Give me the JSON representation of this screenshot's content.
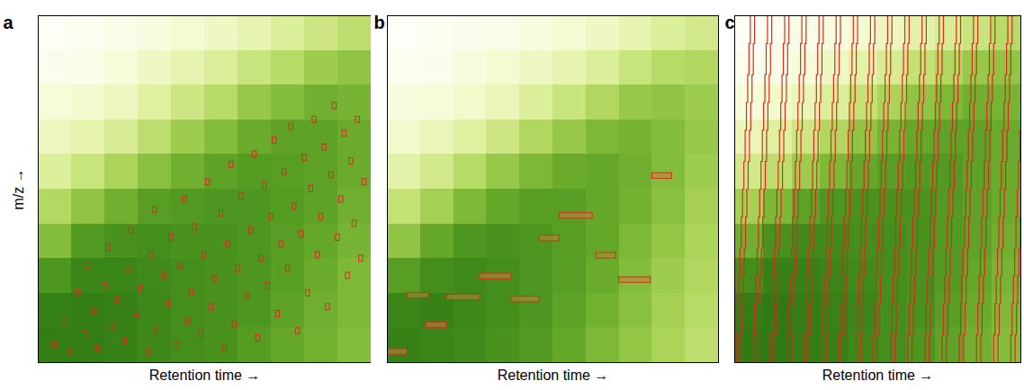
{
  "chart_data": [
    {
      "panel": "a",
      "type": "heatmap",
      "xlabel": "Retention time →",
      "ylabel": "m/z →",
      "xlim": [
        0,
        100
      ],
      "ylim": [
        0,
        100
      ],
      "xticks": [],
      "yticks": [],
      "tick_labels": false,
      "cells": {
        "x_edges": [
          0,
          10,
          20,
          30,
          40,
          50,
          60,
          70,
          80,
          90,
          100
        ],
        "y_edges": [
          0,
          10,
          20,
          30,
          40,
          50,
          60,
          70,
          80,
          90,
          100
        ],
        "intensity_range": [
          0,
          1
        ],
        "intensity": [
          [
            0.9,
            0.9,
            0.88,
            0.85,
            0.82,
            0.8,
            0.75,
            0.7,
            0.65,
            0.6
          ],
          [
            0.88,
            0.9,
            0.88,
            0.85,
            0.82,
            0.8,
            0.78,
            0.72,
            0.66,
            0.62
          ],
          [
            0.78,
            0.86,
            0.86,
            0.84,
            0.82,
            0.8,
            0.78,
            0.74,
            0.68,
            0.62
          ],
          [
            0.6,
            0.76,
            0.8,
            0.82,
            0.8,
            0.8,
            0.78,
            0.74,
            0.7,
            0.64
          ],
          [
            0.45,
            0.56,
            0.66,
            0.74,
            0.76,
            0.78,
            0.78,
            0.75,
            0.72,
            0.66
          ],
          [
            0.3,
            0.38,
            0.48,
            0.58,
            0.66,
            0.72,
            0.75,
            0.74,
            0.72,
            0.68
          ],
          [
            0.2,
            0.25,
            0.32,
            0.42,
            0.52,
            0.6,
            0.68,
            0.72,
            0.72,
            0.68
          ],
          [
            0.12,
            0.15,
            0.2,
            0.28,
            0.36,
            0.44,
            0.54,
            0.6,
            0.66,
            0.64
          ],
          [
            0.06,
            0.08,
            0.12,
            0.18,
            0.24,
            0.3,
            0.38,
            0.44,
            0.52,
            0.56
          ],
          [
            0.03,
            0.05,
            0.08,
            0.1,
            0.14,
            0.18,
            0.24,
            0.3,
            0.36,
            0.42
          ]
        ]
      },
      "features": {
        "type": "box",
        "color": "#d62d20",
        "rt_width": 1.2,
        "mz_height": 1.8,
        "centers": [
          [
            5,
            5
          ],
          [
            8,
            12
          ],
          [
            10,
            3
          ],
          [
            12,
            20
          ],
          [
            14,
            8
          ],
          [
            15,
            28
          ],
          [
            17,
            15
          ],
          [
            18,
            4
          ],
          [
            20,
            22
          ],
          [
            21,
            33
          ],
          [
            23,
            10
          ],
          [
            24,
            18
          ],
          [
            26,
            6
          ],
          [
            27,
            27
          ],
          [
            28,
            38
          ],
          [
            30,
            14
          ],
          [
            31,
            21
          ],
          [
            33,
            3
          ],
          [
            34,
            31
          ],
          [
            35,
            44
          ],
          [
            36,
            9
          ],
          [
            38,
            25
          ],
          [
            39,
            17
          ],
          [
            40,
            36
          ],
          [
            42,
            5
          ],
          [
            43,
            28
          ],
          [
            44,
            47
          ],
          [
            45,
            12
          ],
          [
            46,
            20
          ],
          [
            47,
            39
          ],
          [
            49,
            8
          ],
          [
            50,
            31
          ],
          [
            51,
            52
          ],
          [
            52,
            16
          ],
          [
            53,
            24
          ],
          [
            55,
            43
          ],
          [
            56,
            4
          ],
          [
            57,
            34
          ],
          [
            58,
            57
          ],
          [
            59,
            11
          ],
          [
            60,
            27
          ],
          [
            61,
            48
          ],
          [
            63,
            19
          ],
          [
            64,
            38
          ],
          [
            65,
            60
          ],
          [
            66,
            7
          ],
          [
            67,
            30
          ],
          [
            68,
            51
          ],
          [
            69,
            22
          ],
          [
            70,
            42
          ],
          [
            71,
            64
          ],
          [
            72,
            14
          ],
          [
            73,
            34
          ],
          [
            74,
            55
          ],
          [
            75,
            27
          ],
          [
            76,
            68
          ],
          [
            77,
            45
          ],
          [
            78,
            9
          ],
          [
            79,
            37
          ],
          [
            80,
            59
          ],
          [
            81,
            20
          ],
          [
            82,
            50
          ],
          [
            83,
            70
          ],
          [
            84,
            31
          ],
          [
            85,
            42
          ],
          [
            86,
            62
          ],
          [
            87,
            16
          ],
          [
            88,
            54
          ],
          [
            89,
            74
          ],
          [
            90,
            36
          ],
          [
            91,
            47
          ],
          [
            92,
            66
          ],
          [
            93,
            25
          ],
          [
            94,
            58
          ],
          [
            95,
            40
          ],
          [
            96,
            70
          ],
          [
            97,
            30
          ],
          [
            98,
            52
          ]
        ]
      }
    },
    {
      "panel": "b",
      "type": "heatmap",
      "xlabel": "Retention time →",
      "xlim": [
        0,
        100
      ],
      "ylim": [
        0,
        100
      ],
      "xticks": [],
      "yticks": [],
      "tick_labels": false,
      "cells": {
        "x_edges": [
          0,
          10,
          20,
          30,
          40,
          50,
          60,
          70,
          80,
          90,
          100
        ],
        "y_edges": [
          0,
          10,
          20,
          30,
          40,
          50,
          60,
          70,
          80,
          90,
          100
        ],
        "intensity_range": [
          0,
          1
        ],
        "intensity": [
          [
            0.88,
            0.86,
            0.84,
            0.8,
            0.76,
            0.7,
            0.62,
            0.55,
            0.48,
            0.42
          ],
          [
            0.86,
            0.88,
            0.85,
            0.82,
            0.78,
            0.72,
            0.65,
            0.58,
            0.5,
            0.44
          ],
          [
            0.74,
            0.82,
            0.84,
            0.82,
            0.78,
            0.74,
            0.68,
            0.6,
            0.52,
            0.46
          ],
          [
            0.56,
            0.7,
            0.78,
            0.8,
            0.78,
            0.74,
            0.7,
            0.62,
            0.55,
            0.48
          ],
          [
            0.4,
            0.5,
            0.62,
            0.7,
            0.74,
            0.74,
            0.7,
            0.65,
            0.58,
            0.5
          ],
          [
            0.26,
            0.34,
            0.44,
            0.54,
            0.62,
            0.68,
            0.7,
            0.66,
            0.6,
            0.52
          ],
          [
            0.16,
            0.22,
            0.28,
            0.36,
            0.46,
            0.54,
            0.62,
            0.64,
            0.6,
            0.54
          ],
          [
            0.1,
            0.12,
            0.16,
            0.22,
            0.3,
            0.38,
            0.46,
            0.54,
            0.56,
            0.52
          ],
          [
            0.05,
            0.06,
            0.1,
            0.14,
            0.18,
            0.24,
            0.3,
            0.38,
            0.44,
            0.46
          ],
          [
            0.02,
            0.04,
            0.06,
            0.08,
            0.1,
            0.14,
            0.18,
            0.24,
            0.3,
            0.34
          ]
        ]
      },
      "features": {
        "type": "bar",
        "color": "#d62d20",
        "boxes": [
          [
            0,
            6,
            2.3,
            3.9
          ],
          [
            6,
            12.5,
            18.5,
            20.1
          ],
          [
            11.7,
            18,
            10,
            11.6
          ],
          [
            18,
            28,
            18,
            19.6
          ],
          [
            28,
            37.5,
            24,
            25.6
          ],
          [
            37.5,
            46,
            17.4,
            19
          ],
          [
            46,
            52,
            35,
            36.6
          ],
          [
            52,
            62,
            41.5,
            43.1
          ],
          [
            63,
            69,
            30,
            31.6
          ],
          [
            70,
            79.6,
            23,
            24.6
          ],
          [
            80,
            86,
            53,
            54.6
          ]
        ]
      }
    },
    {
      "panel": "c",
      "type": "heatmap",
      "xlabel": "Retention time →",
      "xlim": [
        0,
        100
      ],
      "ylim": [
        0,
        100
      ],
      "xticks": [],
      "yticks": [],
      "tick_labels": false,
      "cells": {
        "x_edges": [
          0,
          10,
          20,
          30,
          40,
          50,
          60,
          70,
          80,
          90,
          100
        ],
        "y_edges": [
          0,
          10,
          20,
          30,
          40,
          50,
          60,
          70,
          80,
          90,
          100
        ],
        "intensity_range": [
          0,
          1
        ],
        "intensity": [
          [
            0.92,
            0.92,
            0.9,
            0.88,
            0.85,
            0.82,
            0.78,
            0.72,
            0.66,
            0.6
          ],
          [
            0.9,
            0.92,
            0.9,
            0.88,
            0.86,
            0.82,
            0.8,
            0.74,
            0.68,
            0.62
          ],
          [
            0.82,
            0.88,
            0.88,
            0.86,
            0.84,
            0.82,
            0.8,
            0.76,
            0.7,
            0.64
          ],
          [
            0.66,
            0.8,
            0.84,
            0.84,
            0.82,
            0.82,
            0.8,
            0.76,
            0.72,
            0.66
          ],
          [
            0.5,
            0.62,
            0.72,
            0.78,
            0.8,
            0.8,
            0.8,
            0.76,
            0.72,
            0.68
          ],
          [
            0.34,
            0.42,
            0.52,
            0.62,
            0.7,
            0.74,
            0.76,
            0.76,
            0.72,
            0.68
          ],
          [
            0.22,
            0.28,
            0.36,
            0.46,
            0.56,
            0.64,
            0.7,
            0.72,
            0.72,
            0.68
          ],
          [
            0.12,
            0.16,
            0.22,
            0.3,
            0.4,
            0.48,
            0.56,
            0.62,
            0.66,
            0.64
          ],
          [
            0.06,
            0.08,
            0.12,
            0.18,
            0.26,
            0.32,
            0.4,
            0.46,
            0.54,
            0.56
          ],
          [
            0.03,
            0.05,
            0.08,
            0.1,
            0.14,
            0.2,
            0.26,
            0.32,
            0.38,
            0.44
          ]
        ]
      },
      "windows": {
        "type": "line",
        "color": "#d62d20",
        "rt_width": 1.5,
        "mz_edges": [
          0,
          8,
          17,
          25,
          33,
          42,
          50,
          58,
          67,
          75,
          83,
          92,
          100
        ],
        "rt_offsets": [
          0,
          0.45,
          0.9,
          1.35,
          1.8,
          2.25,
          2.7,
          3.15,
          3.6,
          4.05,
          4.5,
          4.95
        ],
        "cycle_starts": [
          0.5,
          6.5,
          12.5,
          18.5,
          24.5,
          30.5,
          36.5,
          42.5,
          48.5,
          54.5,
          60.5,
          66.5,
          72.5,
          78.5,
          84.5,
          90.5,
          96.5
        ]
      }
    }
  ]
}
